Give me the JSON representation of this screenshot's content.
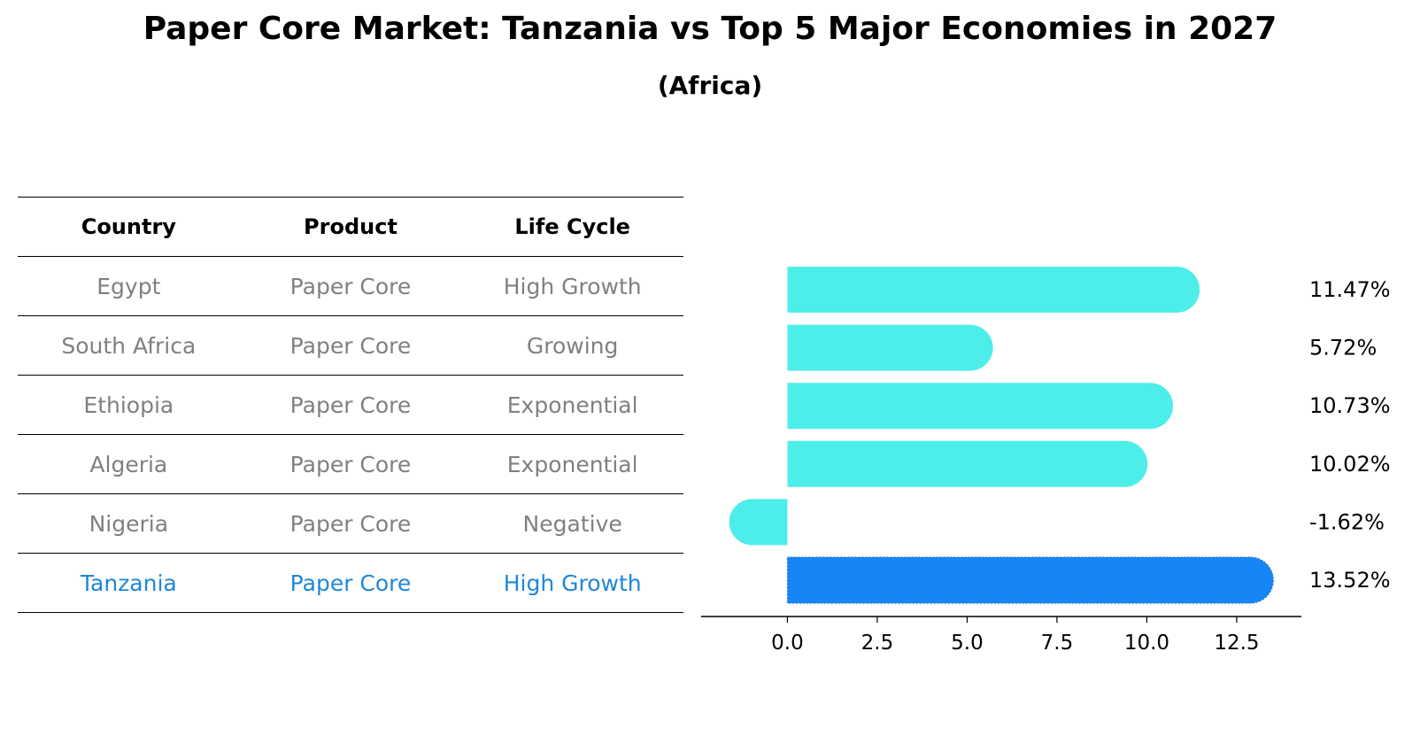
{
  "title": "Paper Core Market: Tanzania vs Top 5 Major Economies in 2027",
  "subtitle": "(Africa)",
  "table": {
    "headers": [
      "Country",
      "Product",
      "Life Cycle"
    ],
    "rows": [
      {
        "country": "Egypt",
        "product": "Paper Core",
        "life_cycle": "High Growth"
      },
      {
        "country": "South Africa",
        "product": "Paper Core",
        "life_cycle": "Growing"
      },
      {
        "country": "Ethiopia",
        "product": "Paper Core",
        "life_cycle": "Exponential"
      },
      {
        "country": "Algeria",
        "product": "Paper Core",
        "life_cycle": "Exponential"
      },
      {
        "country": "Nigeria",
        "product": "Paper Core",
        "life_cycle": "Negative"
      },
      {
        "country": "Tanzania",
        "product": "Paper Core",
        "life_cycle": "High Growth"
      }
    ]
  },
  "chart_data": {
    "type": "bar",
    "orientation": "horizontal",
    "categories": [
      "Egypt",
      "South Africa",
      "Ethiopia",
      "Algeria",
      "Nigeria",
      "Tanzania"
    ],
    "values": [
      11.47,
      5.72,
      10.73,
      10.02,
      -1.62,
      13.52
    ],
    "value_labels": [
      "11.47%",
      "5.72%",
      "10.73%",
      "10.02%",
      "-1.62%",
      "13.52%"
    ],
    "highlight_index": 5,
    "xlim": [
      -2.4,
      14.3
    ],
    "xticks": [
      0.0,
      2.5,
      5.0,
      7.5,
      10.0,
      12.5
    ],
    "xtick_labels": [
      "0.0",
      "2.5",
      "5.0",
      "7.5",
      "10.0",
      "12.5"
    ],
    "colors": {
      "default": "#4deeea",
      "highlight": "#1785f5"
    }
  }
}
